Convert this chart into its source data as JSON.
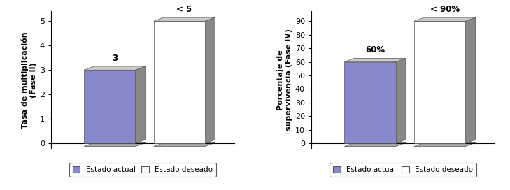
{
  "chart1": {
    "ylabel": "Tasa de multiplicación\n(Fase II)",
    "values": [
      3,
      5
    ],
    "labels": [
      "3",
      "< 5"
    ],
    "bar_colors": [
      "#8888cc",
      "#ffffff"
    ],
    "side_color": "#888888",
    "top_color": "#cccccc",
    "floor_color": "#aaaaaa",
    "bar_edge_color": "#555555",
    "ylim": [
      0,
      5
    ],
    "yticks": [
      0,
      1,
      2,
      3,
      4,
      5
    ]
  },
  "chart2": {
    "ylabel": "Porcentaje de\nsupervivencia (Fase IV)",
    "values": [
      60,
      90
    ],
    "labels": [
      "60%",
      "< 90%"
    ],
    "bar_colors": [
      "#8888cc",
      "#ffffff"
    ],
    "side_color": "#888888",
    "top_color": "#cccccc",
    "floor_color": "#aaaaaa",
    "bar_edge_color": "#555555",
    "ylim": [
      0,
      90
    ],
    "yticks": [
      0,
      10,
      20,
      30,
      40,
      50,
      60,
      70,
      80,
      90
    ]
  },
  "legend_labels": [
    "Estado actual",
    "Estado deseado"
  ],
  "legend_colors": [
    "#8888cc",
    "#ffffff"
  ],
  "legend_edge_colors": [
    "#555555",
    "#555555"
  ],
  "bg_color": "#ffffff"
}
